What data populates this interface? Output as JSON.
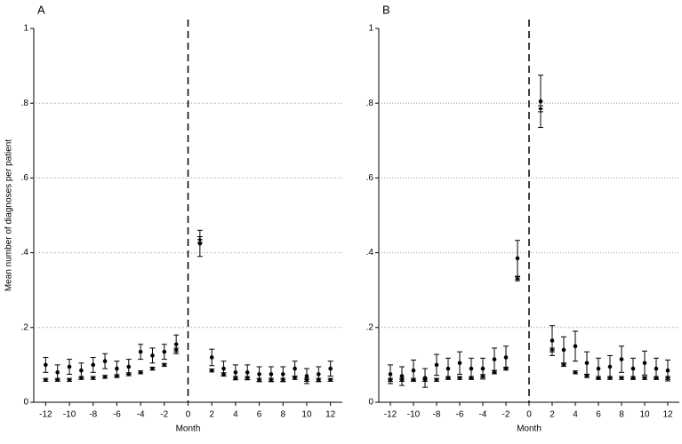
{
  "chart_data": [
    {
      "type": "errorbar",
      "title": "A",
      "ylabel": "Mean number of diagnoses per patient",
      "xlabel": "Month",
      "x": [
        -12,
        -11,
        -10,
        -9,
        -8,
        -7,
        -6,
        -5,
        -4,
        -3,
        -2,
        -1,
        1,
        2,
        3,
        4,
        5,
        6,
        7,
        8,
        9,
        10,
        11,
        12
      ],
      "xlim": [
        -13,
        13
      ],
      "xticks": [
        -12,
        -10,
        -8,
        -6,
        -4,
        -2,
        0,
        2,
        4,
        6,
        8,
        10,
        12
      ],
      "ylim": [
        0,
        1
      ],
      "yticks": [
        0,
        {
          "value": 0.2,
          "label": ".2"
        },
        {
          "value": 0.4,
          "label": ".4"
        },
        {
          "value": 0.6,
          "label": ".6"
        },
        {
          "value": 0.8,
          "label": ".8"
        },
        1
      ],
      "grid": true,
      "vline": 0,
      "series": [
        {
          "marker": "circle",
          "color": "#000000",
          "values": [
            0.1,
            0.08,
            0.095,
            0.085,
            0.1,
            0.11,
            0.09,
            0.095,
            0.135,
            0.125,
            0.135,
            0.155,
            0.425,
            0.12,
            0.09,
            0.08,
            0.08,
            0.075,
            0.075,
            0.075,
            0.09,
            0.07,
            0.075,
            0.09
          ],
          "errors": [
            0.02,
            0.02,
            0.02,
            0.02,
            0.02,
            0.02,
            0.02,
            0.02,
            0.02,
            0.02,
            0.02,
            0.025,
            0.035,
            0.022,
            0.02,
            0.02,
            0.02,
            0.02,
            0.02,
            0.02,
            0.02,
            0.02,
            0.02,
            0.02
          ]
        },
        {
          "marker": "diamond",
          "color": "#000000",
          "values": [
            0.06,
            0.06,
            0.06,
            0.065,
            0.065,
            0.068,
            0.07,
            0.075,
            0.08,
            0.09,
            0.1,
            0.14,
            0.435,
            0.085,
            0.075,
            0.065,
            0.065,
            0.06,
            0.06,
            0.06,
            0.065,
            0.06,
            0.06,
            0.06
          ],
          "errors": [
            0.004,
            0.004,
            0.004,
            0.004,
            0.004,
            0.004,
            0.004,
            0.004,
            0.004,
            0.004,
            0.004,
            0.005,
            0.008,
            0.004,
            0.004,
            0.004,
            0.004,
            0.004,
            0.004,
            0.004,
            0.004,
            0.004,
            0.004,
            0.004
          ]
        }
      ]
    },
    {
      "type": "errorbar",
      "title": "B",
      "xlabel": "Month",
      "x": [
        -12,
        -11,
        -10,
        -9,
        -8,
        -7,
        -6,
        -5,
        -4,
        -3,
        -2,
        -1,
        1,
        2,
        3,
        4,
        5,
        6,
        7,
        8,
        9,
        10,
        11,
        12
      ],
      "xlim": [
        -13,
        13
      ],
      "xticks": [
        -12,
        -10,
        -8,
        -6,
        -4,
        -2,
        0,
        2,
        4,
        6,
        8,
        10,
        12
      ],
      "ylim": [
        0,
        1
      ],
      "yticks": [
        0,
        {
          "value": 0.2,
          "label": ".2"
        },
        {
          "value": 0.4,
          "label": ".4"
        },
        {
          "value": 0.6,
          "label": ".6"
        },
        {
          "value": 0.8,
          "label": ".8"
        },
        1
      ],
      "grid": true,
      "vline": 0,
      "series": [
        {
          "marker": "circle",
          "color": "#000000",
          "values": [
            0.075,
            0.07,
            0.085,
            0.065,
            0.1,
            0.09,
            0.105,
            0.09,
            0.09,
            0.115,
            0.12,
            0.385,
            0.805,
            0.165,
            0.14,
            0.15,
            0.105,
            0.09,
            0.095,
            0.115,
            0.09,
            0.105,
            0.09,
            0.085
          ],
          "errors": [
            0.025,
            0.025,
            0.028,
            0.025,
            0.028,
            0.028,
            0.03,
            0.028,
            0.028,
            0.03,
            0.03,
            0.048,
            0.07,
            0.04,
            0.035,
            0.04,
            0.03,
            0.028,
            0.03,
            0.035,
            0.028,
            0.032,
            0.028,
            0.028
          ]
        },
        {
          "marker": "diamond",
          "color": "#000000",
          "values": [
            0.06,
            0.06,
            0.06,
            0.06,
            0.06,
            0.065,
            0.065,
            0.065,
            0.07,
            0.08,
            0.09,
            0.33,
            0.785,
            0.14,
            0.1,
            0.08,
            0.07,
            0.065,
            0.065,
            0.065,
            0.065,
            0.065,
            0.065,
            0.065
          ],
          "errors": [
            0.004,
            0.004,
            0.004,
            0.004,
            0.004,
            0.004,
            0.004,
            0.004,
            0.004,
            0.004,
            0.004,
            0.005,
            0.008,
            0.005,
            0.004,
            0.004,
            0.004,
            0.004,
            0.004,
            0.004,
            0.004,
            0.004,
            0.004,
            0.004
          ]
        }
      ]
    }
  ]
}
